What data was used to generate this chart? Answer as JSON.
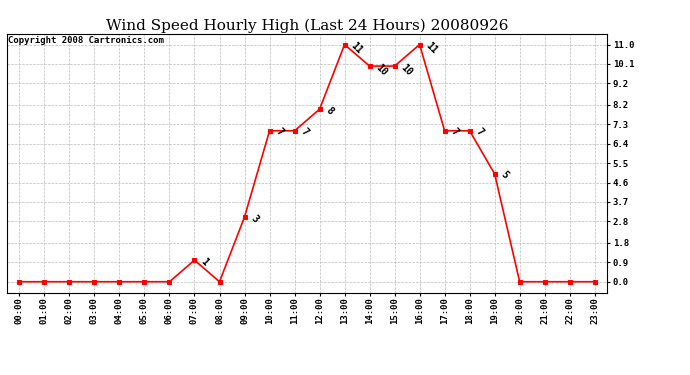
{
  "title": "Wind Speed Hourly High (Last 24 Hours) 20080926",
  "copyright": "Copyright 2008 Cartronics.com",
  "hours": [
    "00:00",
    "01:00",
    "02:00",
    "03:00",
    "04:00",
    "05:00",
    "06:00",
    "07:00",
    "08:00",
    "09:00",
    "10:00",
    "11:00",
    "12:00",
    "13:00",
    "14:00",
    "15:00",
    "16:00",
    "17:00",
    "18:00",
    "19:00",
    "20:00",
    "21:00",
    "22:00",
    "23:00"
  ],
  "values": [
    0,
    0,
    0,
    0,
    0,
    0,
    0,
    1,
    0,
    3,
    7,
    7,
    8,
    11,
    10,
    10,
    11,
    7,
    7,
    5,
    0,
    0,
    0,
    0
  ],
  "yticks": [
    0.0,
    0.9,
    1.8,
    2.8,
    3.7,
    4.6,
    5.5,
    6.4,
    7.3,
    8.2,
    9.2,
    10.1,
    11.0
  ],
  "line_color": "#ff0000",
  "marker_color": "#ff0000",
  "bg_color": "#ffffff",
  "grid_color": "#bbbbbb",
  "title_fontsize": 11,
  "label_fontsize": 7,
  "tick_fontsize": 6.5,
  "copyright_fontsize": 6.5,
  "label_rotation": 315
}
